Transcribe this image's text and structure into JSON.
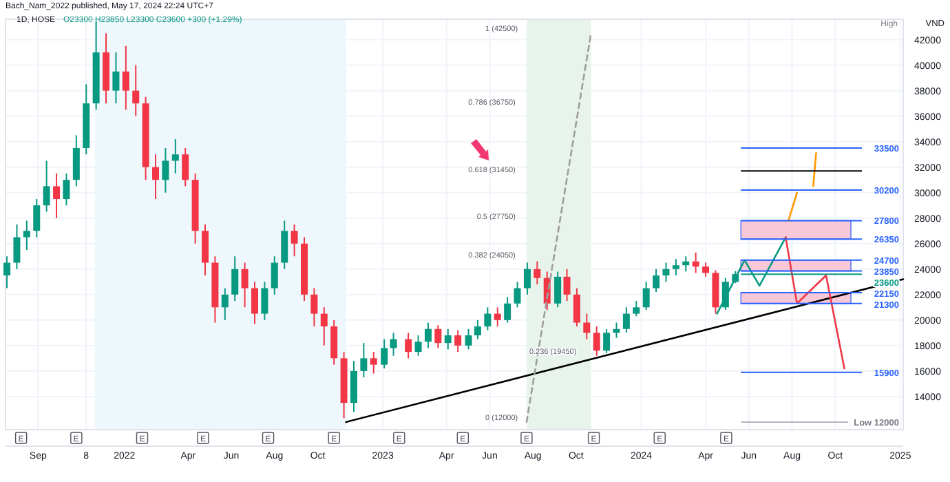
{
  "chart_data": {
    "type": "candlestick",
    "title": "1D, HOSE",
    "subtitle": "O23300 H23850 L23300 C23600 +300 (+1.29%)",
    "ylabel": "VND",
    "x": [
      "2021-07-19",
      "2021-08-02",
      "2021-08-16",
      "2021-08-30",
      "2021-09-13",
      "2021-09-27",
      "2021-10-11",
      "2021-10-25",
      "2021-11-08",
      "2021-11-22",
      "2021-12-06",
      "2021-12-20",
      "2022-01-03",
      "2022-01-17",
      "2022-01-31",
      "2022-02-14",
      "2022-02-28",
      "2022-03-14",
      "2022-03-28",
      "2022-04-11",
      "2022-04-25",
      "2022-05-09",
      "2022-05-23",
      "2022-06-06",
      "2022-06-20",
      "2022-07-04",
      "2022-07-18",
      "2022-08-01",
      "2022-08-15",
      "2022-08-29",
      "2022-09-12",
      "2022-09-26",
      "2022-10-10",
      "2022-10-24",
      "2022-11-07",
      "2022-11-21",
      "2022-12-05",
      "2022-12-19",
      "2023-01-03",
      "2023-01-16",
      "2023-02-06",
      "2023-02-20",
      "2023-03-06",
      "2023-03-20",
      "2023-04-03",
      "2023-04-17",
      "2023-05-02",
      "2023-05-15",
      "2023-05-29",
      "2023-06-12",
      "2023-06-26",
      "2023-07-10",
      "2023-07-24",
      "2023-08-07",
      "2023-08-21",
      "2023-09-05",
      "2023-09-18",
      "2023-10-02",
      "2023-10-16",
      "2023-10-30",
      "2023-11-13",
      "2023-11-27",
      "2023-12-11",
      "2023-12-25",
      "2024-01-08",
      "2024-01-22",
      "2024-02-05",
      "2024-02-19",
      "2024-03-04",
      "2024-03-18",
      "2024-04-01",
      "2024-04-15",
      "2024-04-29",
      "2024-05-13"
    ],
    "ohlc": [
      [
        23500,
        25000,
        22500,
        24500
      ],
      [
        24500,
        27500,
        24000,
        26500
      ],
      [
        26500,
        27800,
        25500,
        27000
      ],
      [
        27000,
        29500,
        26500,
        29000
      ],
      [
        29000,
        32500,
        28500,
        30500
      ],
      [
        30500,
        31500,
        28000,
        29500
      ],
      [
        29500,
        31500,
        29000,
        31000
      ],
      [
        31000,
        34500,
        30500,
        33500
      ],
      [
        33500,
        38500,
        33000,
        37000
      ],
      [
        37000,
        43400,
        36500,
        41000
      ],
      [
        41000,
        42500,
        37000,
        38000
      ],
      [
        38000,
        41000,
        37000,
        39500
      ],
      [
        39500,
        41500,
        36500,
        38000
      ],
      [
        38000,
        40000,
        36000,
        37000
      ],
      [
        37000,
        37500,
        31000,
        32000
      ],
      [
        32000,
        33000,
        29500,
        31000
      ],
      [
        31000,
        33500,
        30000,
        32500
      ],
      [
        32500,
        34200,
        31500,
        33000
      ],
      [
        33000,
        33500,
        30500,
        31000
      ],
      [
        31000,
        31500,
        26000,
        27000
      ],
      [
        27000,
        27500,
        23500,
        24500
      ],
      [
        24500,
        25000,
        19800,
        21000
      ],
      [
        21000,
        22500,
        20000,
        22000
      ],
      [
        22000,
        25000,
        21500,
        24000
      ],
      [
        24000,
        24500,
        21000,
        22500
      ],
      [
        22500,
        23000,
        19700,
        20500
      ],
      [
        20500,
        23000,
        20000,
        22500
      ],
      [
        22500,
        25000,
        22000,
        24500
      ],
      [
        24500,
        27800,
        24000,
        27000
      ],
      [
        27000,
        27500,
        25000,
        26000
      ],
      [
        26000,
        26500,
        21500,
        22000
      ],
      [
        22000,
        22500,
        19500,
        20500
      ],
      [
        20500,
        21000,
        18000,
        19500
      ],
      [
        19500,
        20000,
        16500,
        17000
      ],
      [
        17000,
        17500,
        12300,
        13500
      ],
      [
        13500,
        16800,
        12800,
        16000
      ],
      [
        16000,
        18200,
        15500,
        17000
      ],
      [
        17000,
        17500,
        15800,
        16500
      ],
      [
        16500,
        18500,
        16200,
        17800
      ],
      [
        17800,
        19000,
        17200,
        18500
      ],
      [
        18500,
        19000,
        17000,
        17500
      ],
      [
        17500,
        18800,
        17200,
        18300
      ],
      [
        18300,
        19800,
        17800,
        19300
      ],
      [
        19300,
        19600,
        17800,
        18200
      ],
      [
        18200,
        19300,
        17700,
        18800
      ],
      [
        18800,
        19200,
        17500,
        18000
      ],
      [
        18000,
        19300,
        17700,
        18800
      ],
      [
        18800,
        20000,
        18500,
        19500
      ],
      [
        19500,
        21000,
        19200,
        20500
      ],
      [
        20500,
        21000,
        19500,
        20000
      ],
      [
        20000,
        21800,
        19800,
        21300
      ],
      [
        21300,
        23000,
        21000,
        22500
      ],
      [
        22500,
        24500,
        22000,
        24000
      ],
      [
        24000,
        24600,
        22800,
        23300
      ],
      [
        23300,
        23800,
        20800,
        21300
      ],
      [
        21300,
        23800,
        21000,
        23400
      ],
      [
        23400,
        24000,
        21500,
        22000
      ],
      [
        22000,
        22500,
        19500,
        19800
      ],
      [
        19800,
        20500,
        18500,
        19000
      ],
      [
        19000,
        19500,
        17200,
        17600
      ],
      [
        17600,
        19300,
        17400,
        19000
      ],
      [
        19000,
        19800,
        18600,
        19300
      ],
      [
        19300,
        21000,
        19000,
        20500
      ],
      [
        20500,
        21500,
        20300,
        21000
      ],
      [
        21000,
        23000,
        20800,
        22500
      ],
      [
        22500,
        24000,
        22200,
        23500
      ],
      [
        23500,
        24500,
        23000,
        24000
      ],
      [
        24000,
        24800,
        23500,
        24300
      ],
      [
        24300,
        25000,
        23800,
        24600
      ],
      [
        24600,
        25300,
        23700,
        24200
      ],
      [
        24200,
        24500,
        23400,
        23700
      ],
      [
        23700,
        23900,
        20500,
        21000
      ],
      [
        21000,
        23300,
        20800,
        23000
      ],
      [
        23000,
        23850,
        22900,
        23600
      ]
    ],
    "xlim": [
      "2021-07-17",
      "2025-01-05"
    ],
    "ylim": [
      11400,
      43600
    ],
    "xticks": [
      {
        "value": "2021-09-01",
        "label": "Sep"
      },
      {
        "value": "2021-11-08",
        "label": "8"
      },
      {
        "value": "2022-01-01",
        "label": "2022"
      },
      {
        "value": "2022-04-01",
        "label": "Apr"
      },
      {
        "value": "2022-06-01",
        "label": "Jun"
      },
      {
        "value": "2022-08-01",
        "label": "Aug"
      },
      {
        "value": "2022-10-01",
        "label": "Oct"
      },
      {
        "value": "2023-01-01",
        "label": "2023"
      },
      {
        "value": "2023-04-01",
        "label": "Apr"
      },
      {
        "value": "2023-06-01",
        "label": "Jun"
      },
      {
        "value": "2023-08-01",
        "label": "Aug"
      },
      {
        "value": "2023-10-01",
        "label": "Oct"
      },
      {
        "value": "2024-01-01",
        "label": "2024"
      },
      {
        "value": "2024-04-01",
        "label": "Apr"
      },
      {
        "value": "2024-06-01",
        "label": "Jun"
      },
      {
        "value": "2024-08-01",
        "label": "Aug"
      },
      {
        "value": "2024-10-01",
        "label": "Oct"
      },
      {
        "value": "2025-01-01",
        "label": "2025"
      }
    ],
    "yticks": [
      14000,
      16000,
      18000,
      20000,
      22000,
      24000,
      26000,
      28000,
      30000,
      32000,
      34000,
      36000,
      38000,
      40000,
      42000
    ],
    "grid": true,
    "series": [
      {
        "type": "line",
        "color": "#000000",
        "x": [
          "2022-11-10",
          "2025-01-05"
        ],
        "values": [
          12000,
          23200
        ]
      },
      {
        "type": "line",
        "color": "#9e9e9e",
        "line_style": "dashed",
        "x": [
          "2023-07-23",
          "2023-10-22"
        ],
        "values": [
          12000,
          42500
        ]
      },
      {
        "type": "line",
        "color": "#089981",
        "x": [
          "2024-04-17",
          "2024-05-26",
          "2024-06-16",
          "2024-07-23"
        ],
        "values": [
          20500,
          24700,
          22700,
          26500
        ]
      },
      {
        "type": "line",
        "color": "#ff9800",
        "x": [
          "2024-07-27",
          "2024-08-08"
        ],
        "values": [
          27800,
          30000
        ]
      },
      {
        "type": "line",
        "color": "#ff9800",
        "x": [
          "2024-08-31",
          "2024-09-04"
        ],
        "values": [
          30500,
          33100
        ]
      },
      {
        "type": "line",
        "color": "#f23645",
        "x": [
          "2024-07-23",
          "2024-08-08",
          "2024-09-18",
          "2024-10-14"
        ],
        "values": [
          26500,
          21300,
          23500,
          16200
        ]
      }
    ],
    "ref_lines": [
      {
        "axis": "y",
        "value": 33500,
        "label": "33500",
        "color": "#2962ff"
      },
      {
        "axis": "y",
        "value": 31700,
        "color": "#000000"
      },
      {
        "axis": "y",
        "value": 30200,
        "label": "30200",
        "color": "#2962ff"
      },
      {
        "axis": "y",
        "value": 27800,
        "label": "27800",
        "color": "#2962ff"
      },
      {
        "axis": "y",
        "value": 26350,
        "label": "26350",
        "color": "#2962ff"
      },
      {
        "axis": "y",
        "value": 24700,
        "label": "24700",
        "color": "#2962ff"
      },
      {
        "axis": "y",
        "value": 23850,
        "label": "23850",
        "color": "#2962ff"
      },
      {
        "axis": "y",
        "value": 23600,
        "label": "23600",
        "color": "#089981"
      },
      {
        "axis": "y",
        "value": 22150,
        "label": "22150",
        "color": "#2962ff"
      },
      {
        "axis": "y",
        "value": 21300,
        "label": "21300",
        "color": "#2962ff"
      },
      {
        "axis": "y",
        "value": 15900,
        "label": "15900",
        "color": "#2962ff"
      },
      {
        "axis": "y",
        "value": 12000,
        "label": "Low 12000",
        "color": "#b2b5be"
      }
    ],
    "bands": [
      {
        "axis": "x",
        "from": "2021-11-20",
        "to": "2022-11-10",
        "color": "#eef7fc"
      },
      {
        "axis": "x",
        "from": "2023-07-23",
        "to": "2023-10-22",
        "color": "#e8f3ec"
      },
      {
        "axis": "y",
        "from": 26350,
        "to": 27800,
        "color": "#f8c8d8"
      },
      {
        "axis": "y",
        "from": 23850,
        "to": 24700,
        "color": "#f8c8d8"
      },
      {
        "axis": "y",
        "from": 21300,
        "to": 22150,
        "color": "#f8c8d8"
      }
    ],
    "annotations": [
      "Bach_Nam_2022 published, May 17, 2024 22:24 UTC+7",
      "High",
      {
        "text": "1 (42500)",
        "x": "2023-07-23",
        "y": 42500
      },
      {
        "text": "0.786 (36750)",
        "x": "2023-07-23",
        "y": 36750
      },
      {
        "text": "0.618 (31450)",
        "x": "2023-07-23",
        "y": 31450
      },
      {
        "text": "0.5 (27750)",
        "x": "2023-07-23",
        "y": 27750
      },
      {
        "text": "0.382 (24050)",
        "x": "2023-07-23",
        "y": 24050
      },
      {
        "text": "0.236 (19450)",
        "x": "2023-07-23",
        "y": 19450
      },
      {
        "text": "0 (12000)",
        "x": "2023-07-23",
        "y": 12000
      },
      {
        "text": "E",
        "x": "2021-08-08"
      },
      {
        "text": "E",
        "x": "2021-10-25"
      },
      {
        "text": "E",
        "x": "2022-01-26"
      },
      {
        "text": "E",
        "x": "2022-04-22"
      },
      {
        "text": "E",
        "x": "2022-07-23"
      },
      {
        "text": "E",
        "x": "2022-10-24"
      },
      {
        "text": "E",
        "x": "2023-01-24"
      },
      {
        "text": "E",
        "x": "2023-04-24"
      },
      {
        "text": "E",
        "x": "2023-07-23"
      },
      {
        "text": "E",
        "x": "2023-10-26"
      },
      {
        "text": "E",
        "x": "2024-01-27"
      },
      {
        "text": "E",
        "x": "2024-04-30"
      }
    ]
  }
}
